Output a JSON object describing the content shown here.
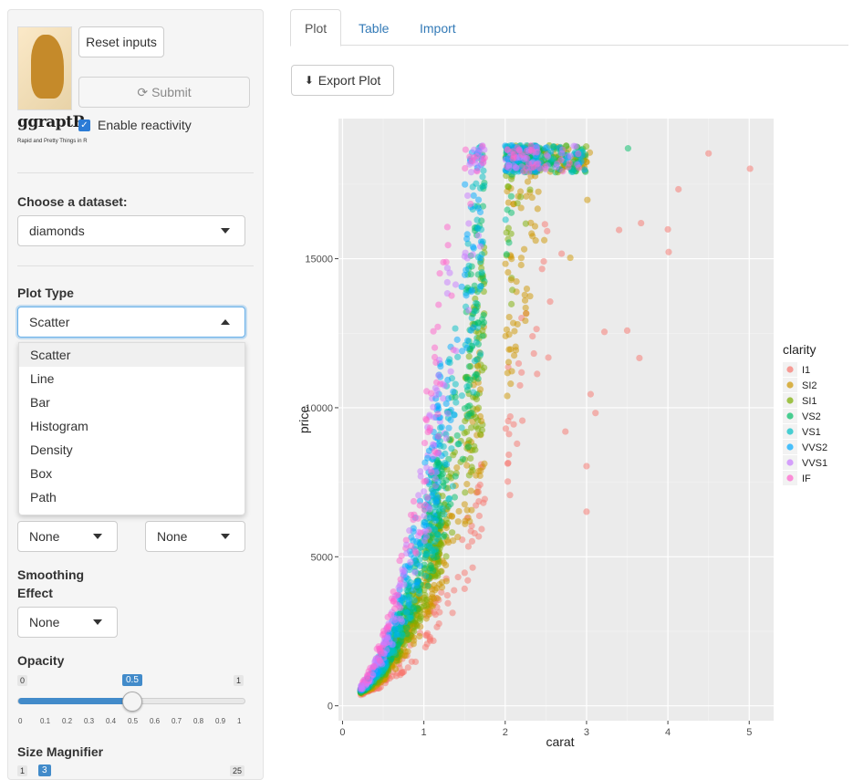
{
  "sidebar": {
    "brand": "ggraptR",
    "tagline": "Rapid and Pretty Things in R",
    "reset_label": "Reset inputs",
    "submit_label": "Submit",
    "reactivity_label": "Enable reactivity",
    "dataset_label": "Choose a dataset:",
    "dataset_value": "diamonds",
    "plot_type_label": "Plot Type",
    "plot_type_value": "Scatter",
    "plot_type_options": [
      "Scatter",
      "Line",
      "Bar",
      "Histogram",
      "Density",
      "Box",
      "Path"
    ],
    "select_left_value": "None",
    "select_right_value": "None",
    "smoothing_label_line1": "Smoothing",
    "smoothing_label_line2": "Effect",
    "smoothing_value": "None",
    "opacity_label": "Opacity",
    "opacity_min": "0",
    "opacity_max": "1",
    "opacity_value": "0.5",
    "opacity_fraction": 0.5,
    "opacity_ticks": [
      "0",
      "0.1",
      "0.2",
      "0.3",
      "0.4",
      "0.5",
      "0.6",
      "0.7",
      "0.8",
      "0.9",
      "1"
    ],
    "size_label": "Size Magnifier",
    "size_min": "1",
    "size_value": "3",
    "size_max": "25"
  },
  "tabs": [
    {
      "label": "Plot",
      "active": true
    },
    {
      "label": "Table",
      "active": false
    },
    {
      "label": "Import",
      "active": false
    }
  ],
  "export_label": "Export Plot",
  "chart_data": {
    "type": "scatter",
    "title": "",
    "xlabel": "carat",
    "ylabel": "price",
    "xlim": [
      -0.05,
      5.3
    ],
    "ylim": [
      -500,
      19700
    ],
    "x_ticks": [
      0,
      1,
      2,
      3,
      4,
      5
    ],
    "y_ticks": [
      0,
      5000,
      10000,
      15000
    ],
    "grid": true,
    "panel_background": "#ebebeb",
    "legend": {
      "title": "clarity",
      "placement": "right",
      "entries": [
        {
          "name": "I1",
          "color": "#f8766d"
        },
        {
          "name": "SI2",
          "color": "#cd9600"
        },
        {
          "name": "SI1",
          "color": "#7cae00"
        },
        {
          "name": "VS2",
          "color": "#00be67"
        },
        {
          "name": "VS1",
          "color": "#00bfc4"
        },
        {
          "name": "VVS2",
          "color": "#00a9ff"
        },
        {
          "name": "VVS1",
          "color": "#c77cff"
        },
        {
          "name": "IF",
          "color": "#ff61cc"
        }
      ]
    },
    "opacity": 0.5,
    "outlier_points": [
      {
        "x": 5.01,
        "y": 18018,
        "clarity": "I1"
      },
      {
        "x": 4.5,
        "y": 18531,
        "clarity": "I1"
      },
      {
        "x": 4.13,
        "y": 17329,
        "clarity": "I1"
      },
      {
        "x": 4.01,
        "y": 15223,
        "clarity": "I1"
      },
      {
        "x": 4.0,
        "y": 15984,
        "clarity": "I1"
      },
      {
        "x": 3.67,
        "y": 16193,
        "clarity": "I1"
      },
      {
        "x": 3.65,
        "y": 11668,
        "clarity": "I1"
      },
      {
        "x": 3.51,
        "y": 18701,
        "clarity": "VS2"
      },
      {
        "x": 3.5,
        "y": 12587,
        "clarity": "I1"
      },
      {
        "x": 3.4,
        "y": 15964,
        "clarity": "I1"
      },
      {
        "x": 3.22,
        "y": 12545,
        "clarity": "I1"
      },
      {
        "x": 3.11,
        "y": 9823,
        "clarity": "I1"
      },
      {
        "x": 3.05,
        "y": 10453,
        "clarity": "I1"
      },
      {
        "x": 3.04,
        "y": 18559,
        "clarity": "SI2"
      },
      {
        "x": 3.0,
        "y": 18242,
        "clarity": "SI2"
      },
      {
        "x": 3.01,
        "y": 16970,
        "clarity": "SI2"
      },
      {
        "x": 3.0,
        "y": 8040,
        "clarity": "I1"
      },
      {
        "x": 3.0,
        "y": 6512,
        "clarity": "I1"
      },
      {
        "x": 2.74,
        "y": 9200,
        "clarity": "I1"
      },
      {
        "x": 2.8,
        "y": 15030,
        "clarity": "SI2"
      }
    ]
  }
}
